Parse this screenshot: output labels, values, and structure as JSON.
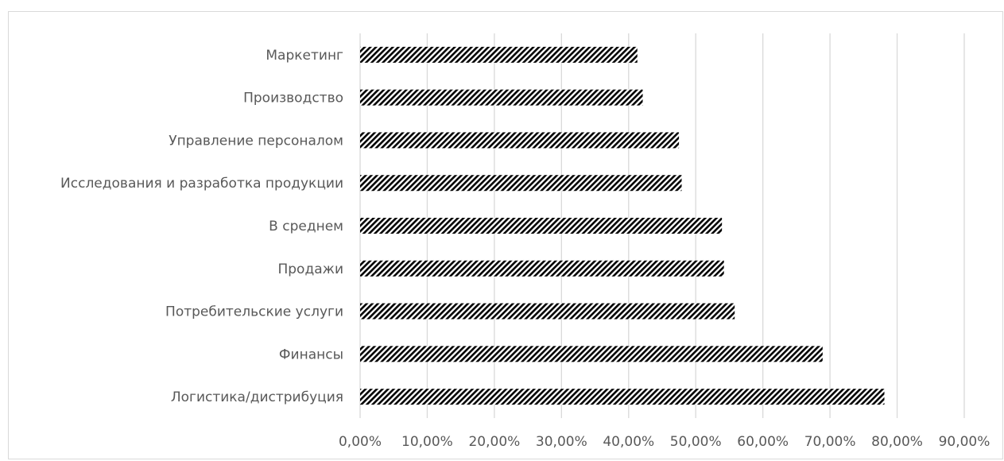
{
  "chart_data": {
    "type": "bar",
    "orientation": "horizontal",
    "categories": [
      "Маркетинг",
      "Производство",
      "Управление персоналом",
      "Исследования и разработка продукции",
      "В среднем ",
      "Продажи",
      "Потребительские услуги",
      "Финансы",
      "Логистика/дистрибуция"
    ],
    "values": [
      0.413,
      0.421,
      0.475,
      0.479,
      0.539,
      0.542,
      0.558,
      0.689,
      0.781
    ],
    "xticks": [
      "0,00%",
      "10,00%",
      "20,00%",
      "30,00%",
      "40,00%",
      "50,00%",
      "60,00%",
      "70,00%",
      "80,00%",
      "90,00%"
    ],
    "xlim": [
      0,
      0.9
    ],
    "grid": "vertical",
    "legend": "none",
    "bar_fill": "diagonal hatch",
    "colors": {
      "bar": "#000000",
      "grid": "#d9d9d9",
      "text": "#595959",
      "border": "#d9d9d9"
    }
  }
}
